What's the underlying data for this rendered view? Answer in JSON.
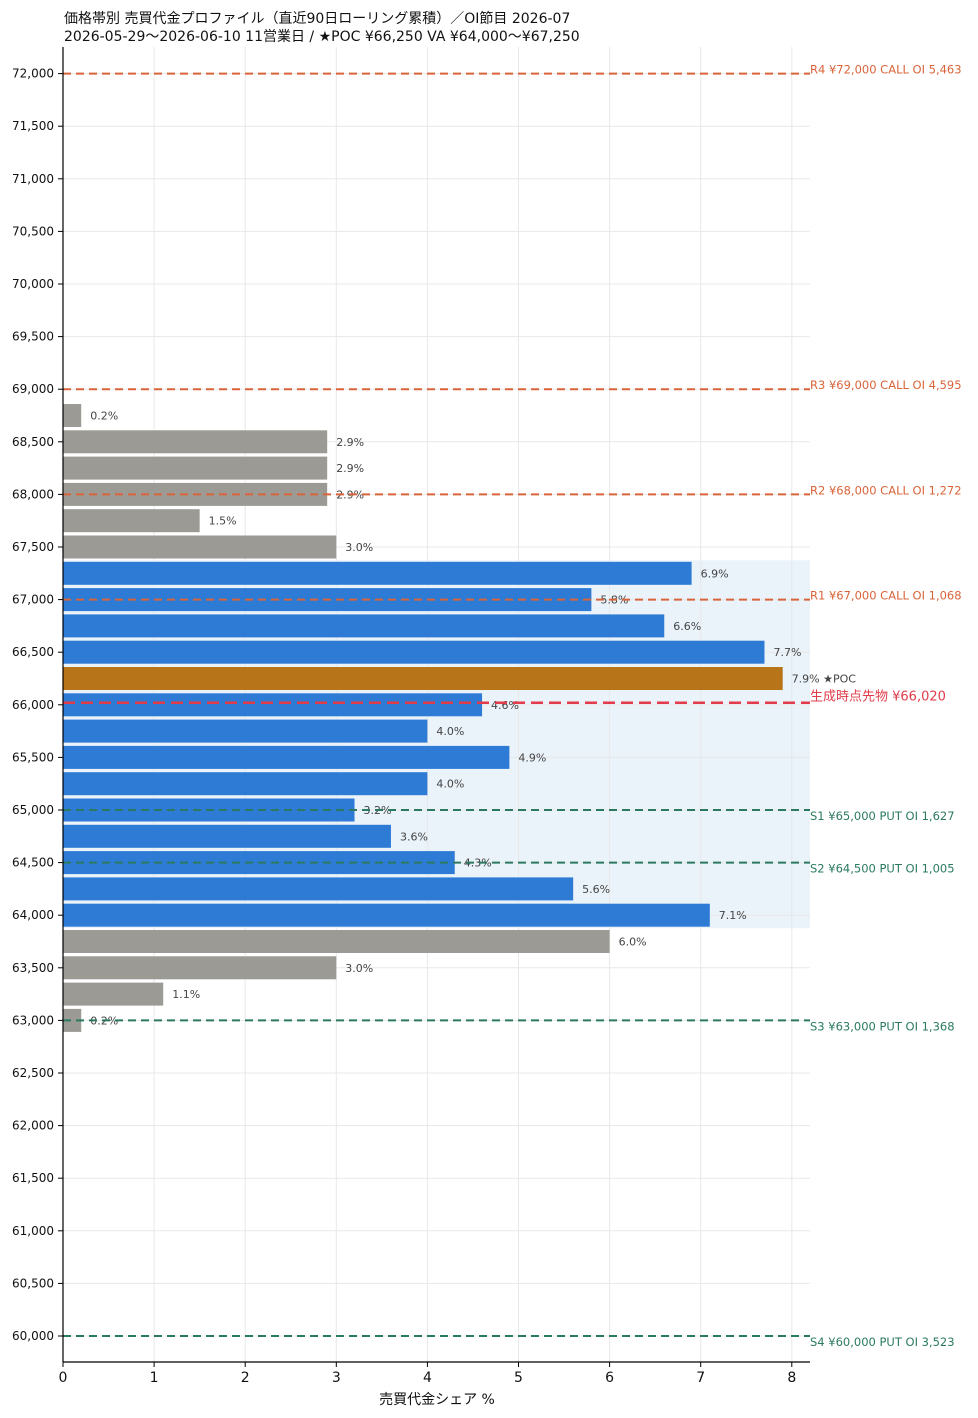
{
  "title_line1": "価格帯別 売買代金プロファイル（直近90日ローリング累積）／OI節目 2026-07",
  "title_line2": "2026-05-29〜2026-06-10  11営業日  /  ★POC ¥66,250   VA ¥64,000〜¥67,250",
  "chart_data": {
    "type": "bar",
    "orientation": "horizontal",
    "xlabel": "売買代金シェア %",
    "ylabel": "",
    "xlim": [
      0,
      8.2
    ],
    "ylim": [
      59750,
      72250
    ],
    "x_ticks": [
      0,
      1,
      2,
      3,
      4,
      5,
      6,
      7,
      8
    ],
    "y_ticks": [
      60000,
      60500,
      61000,
      61500,
      62000,
      62500,
      63000,
      63500,
      64000,
      64500,
      65000,
      65500,
      66000,
      66500,
      67000,
      67500,
      68000,
      68500,
      69000,
      69500,
      70000,
      70500,
      71000,
      71500,
      72000
    ],
    "y_tick_labels": [
      "60,000",
      "60,500",
      "61,000",
      "61,500",
      "62,000",
      "62,500",
      "63,000",
      "63,500",
      "64,000",
      "64,500",
      "65,000",
      "65,500",
      "66,000",
      "66,500",
      "67,000",
      "67,500",
      "68,000",
      "68,500",
      "69,000",
      "69,500",
      "70,000",
      "70,500",
      "71,000",
      "71,500",
      "72,000"
    ],
    "grid": true,
    "bars": [
      {
        "price": 68750,
        "value": 0.2,
        "label": "0.2%",
        "zone": "outside"
      },
      {
        "price": 68500,
        "value": 2.9,
        "label": "2.9%",
        "zone": "outside"
      },
      {
        "price": 68250,
        "value": 2.9,
        "label": "2.9%",
        "zone": "outside"
      },
      {
        "price": 68000,
        "value": 2.9,
        "label": "2.9%",
        "zone": "outside"
      },
      {
        "price": 67750,
        "value": 1.5,
        "label": "1.5%",
        "zone": "outside"
      },
      {
        "price": 67500,
        "value": 3.0,
        "label": "3.0%",
        "zone": "outside"
      },
      {
        "price": 67250,
        "value": 6.9,
        "label": "6.9%",
        "zone": "va"
      },
      {
        "price": 67000,
        "value": 5.8,
        "label": "5.8%",
        "zone": "va"
      },
      {
        "price": 66750,
        "value": 6.6,
        "label": "6.6%",
        "zone": "va"
      },
      {
        "price": 66500,
        "value": 7.7,
        "label": "7.7%",
        "zone": "va"
      },
      {
        "price": 66250,
        "value": 7.9,
        "label": "7.9%  ★POC",
        "zone": "poc"
      },
      {
        "price": 66000,
        "value": 4.6,
        "label": "4.6%",
        "zone": "va"
      },
      {
        "price": 65750,
        "value": 4.0,
        "label": "4.0%",
        "zone": "va"
      },
      {
        "price": 65500,
        "value": 4.9,
        "label": "4.9%",
        "zone": "va"
      },
      {
        "price": 65250,
        "value": 4.0,
        "label": "4.0%",
        "zone": "va"
      },
      {
        "price": 65000,
        "value": 3.2,
        "label": "3.2%",
        "zone": "va"
      },
      {
        "price": 64750,
        "value": 3.6,
        "label": "3.6%",
        "zone": "va"
      },
      {
        "price": 64500,
        "value": 4.3,
        "label": "4.3%",
        "zone": "va"
      },
      {
        "price": 64250,
        "value": 5.6,
        "label": "5.6%",
        "zone": "va"
      },
      {
        "price": 64000,
        "value": 7.1,
        "label": "7.1%",
        "zone": "va"
      },
      {
        "price": 63750,
        "value": 6.0,
        "label": "6.0%",
        "zone": "outside"
      },
      {
        "price": 63500,
        "value": 3.0,
        "label": "3.0%",
        "zone": "outside"
      },
      {
        "price": 63250,
        "value": 1.1,
        "label": "1.1%",
        "zone": "outside"
      },
      {
        "price": 63000,
        "value": 0.2,
        "label": "0.2%",
        "zone": "outside"
      }
    ],
    "value_area": {
      "low": 64000,
      "high": 67250
    },
    "levels": [
      {
        "price": 72000,
        "label": "R4 ¥72,000  CALL OI 5,463",
        "kind": "resistance"
      },
      {
        "price": 69000,
        "label": "R3 ¥69,000  CALL OI 4,595",
        "kind": "resistance"
      },
      {
        "price": 68000,
        "label": "R2 ¥68,000  CALL OI 1,272",
        "kind": "resistance"
      },
      {
        "price": 67000,
        "label": "R1 ¥67,000  CALL OI 1,068",
        "kind": "resistance"
      },
      {
        "price": 65000,
        "label": "S1 ¥65,000  PUT OI 1,627",
        "kind": "support"
      },
      {
        "price": 64500,
        "label": "S2 ¥64,500  PUT OI 1,005",
        "kind": "support"
      },
      {
        "price": 63000,
        "label": "S3 ¥63,000  PUT OI 1,368",
        "kind": "support"
      },
      {
        "price": 60000,
        "label": "S4 ¥60,000  PUT OI 3,523",
        "kind": "support"
      }
    ],
    "current_price": {
      "price": 66020,
      "label": "生成時点先物 ¥66,020"
    },
    "colors": {
      "va": "#2e7bd6",
      "poc": "#b87418",
      "outside": "#9b9a94",
      "value_area_bg": "#eaf2fa",
      "resistance": "#d9643a",
      "support": "#2b7a60",
      "current": "#e03c4a",
      "grid": "#e8e8e8",
      "axis": "#000000",
      "bar_label": "#444444"
    }
  }
}
